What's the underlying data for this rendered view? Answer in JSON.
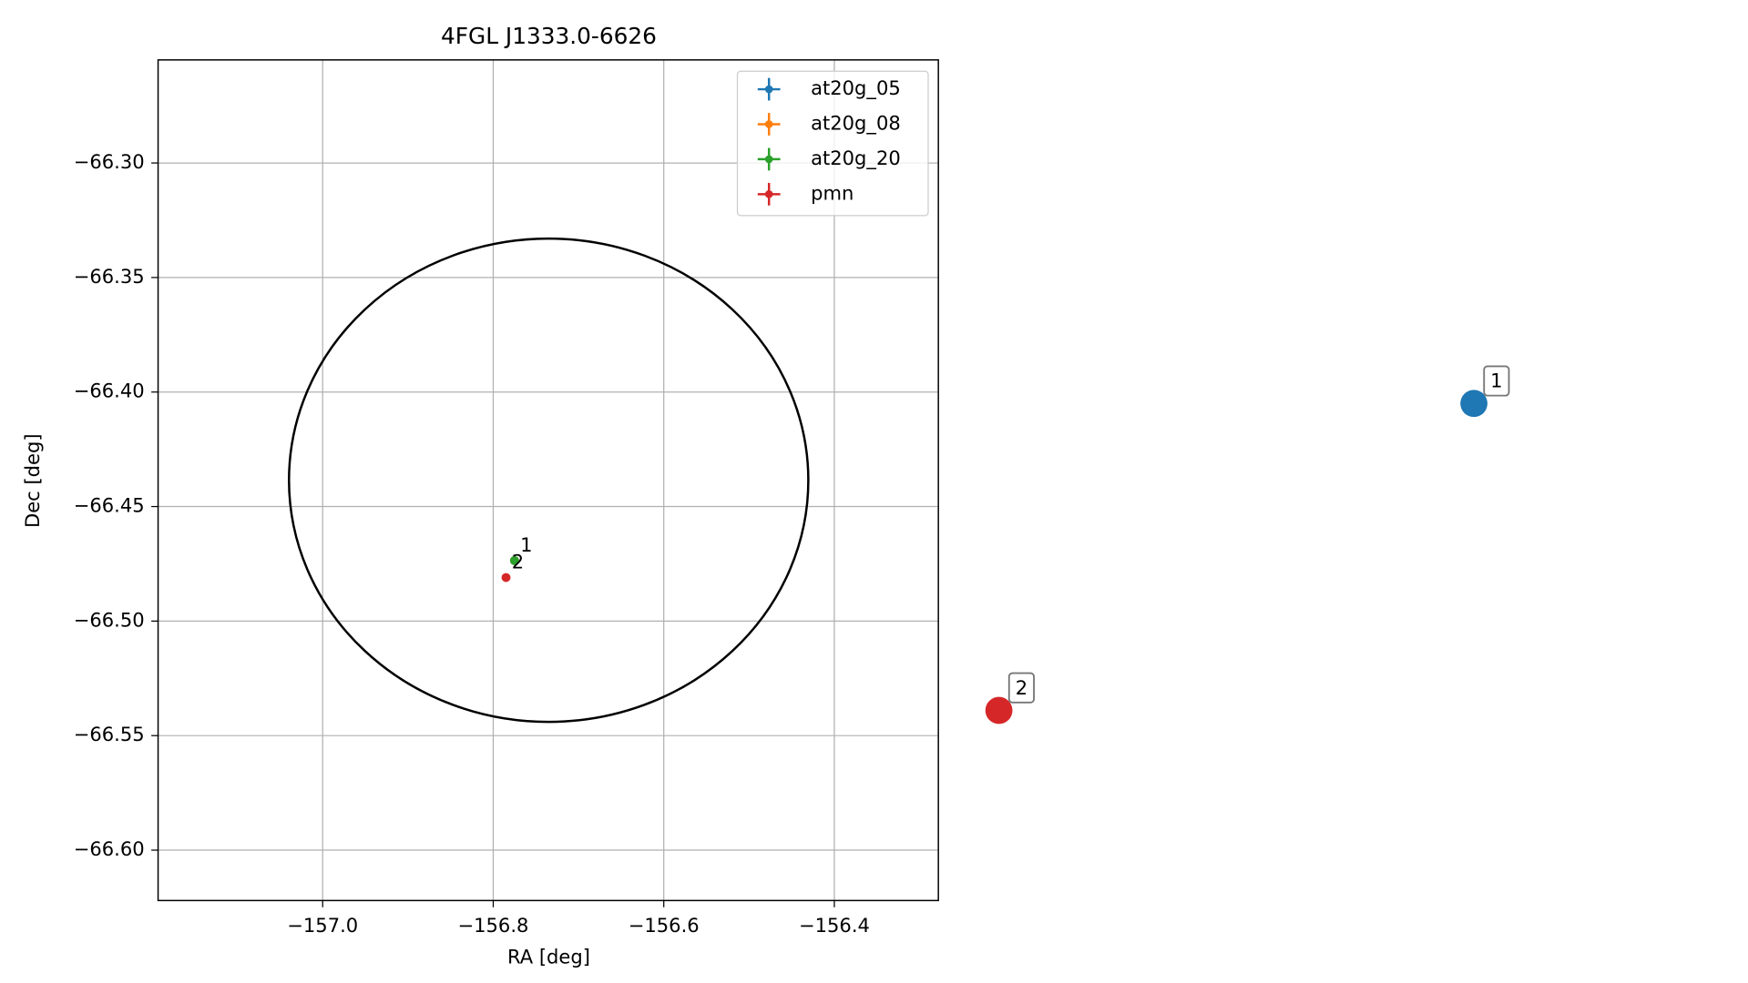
{
  "chart_data": {
    "type": "scatter",
    "title": "4FGL J1333.0-6626",
    "x_label": "RA [deg]",
    "y_label": "Dec [deg]",
    "xlim": [
      -157.193,
      -156.278
    ],
    "ylim": [
      -66.622,
      -66.255
    ],
    "xticks": [
      {
        "value": -157.0,
        "label": "−157.0"
      },
      {
        "value": -156.8,
        "label": "−156.8"
      },
      {
        "value": -156.6,
        "label": "−156.6"
      },
      {
        "value": -156.4,
        "label": "−156.4"
      }
    ],
    "yticks": [
      {
        "value": -66.3,
        "label": "−66.30"
      },
      {
        "value": -66.35,
        "label": "−66.35"
      },
      {
        "value": -66.4,
        "label": "−66.40"
      },
      {
        "value": -66.45,
        "label": "−66.45"
      },
      {
        "value": -66.5,
        "label": "−66.50"
      },
      {
        "value": -66.55,
        "label": "−66.55"
      },
      {
        "value": -66.6,
        "label": "−66.60"
      }
    ],
    "grid": true,
    "legend": "upper right",
    "series": [
      {
        "name": "at20g_05",
        "color": "#1f77b4",
        "x": [
          -156.775
        ],
        "values": [
          -66.4736
        ]
      },
      {
        "name": "at20g_08",
        "color": "#ff7f0e",
        "x": [
          -156.775
        ],
        "values": [
          -66.4736
        ]
      },
      {
        "name": "at20g_20",
        "color": "#2ca02c",
        "x": [
          -156.775
        ],
        "values": [
          -66.4736
        ]
      },
      {
        "name": "pmn",
        "color": "#d62728",
        "x": [
          -156.785
        ],
        "values": [
          -66.481
        ]
      }
    ],
    "ellipse": {
      "center": [
        -156.735,
        -66.4385
      ],
      "width": 0.609,
      "height": 0.211,
      "color": "#000000"
    },
    "point_labels": [
      {
        "label": "1",
        "x": -156.775,
        "y": -66.4736
      },
      {
        "label": "2",
        "x": -156.785,
        "y": -66.481
      }
    ],
    "highlighted": [
      {
        "label": "1",
        "x": -155.65,
        "y": -66.405,
        "color": "#1f77b4"
      },
      {
        "label": "2",
        "x": -156.207,
        "y": -66.539,
        "color": "#d62728"
      }
    ]
  }
}
